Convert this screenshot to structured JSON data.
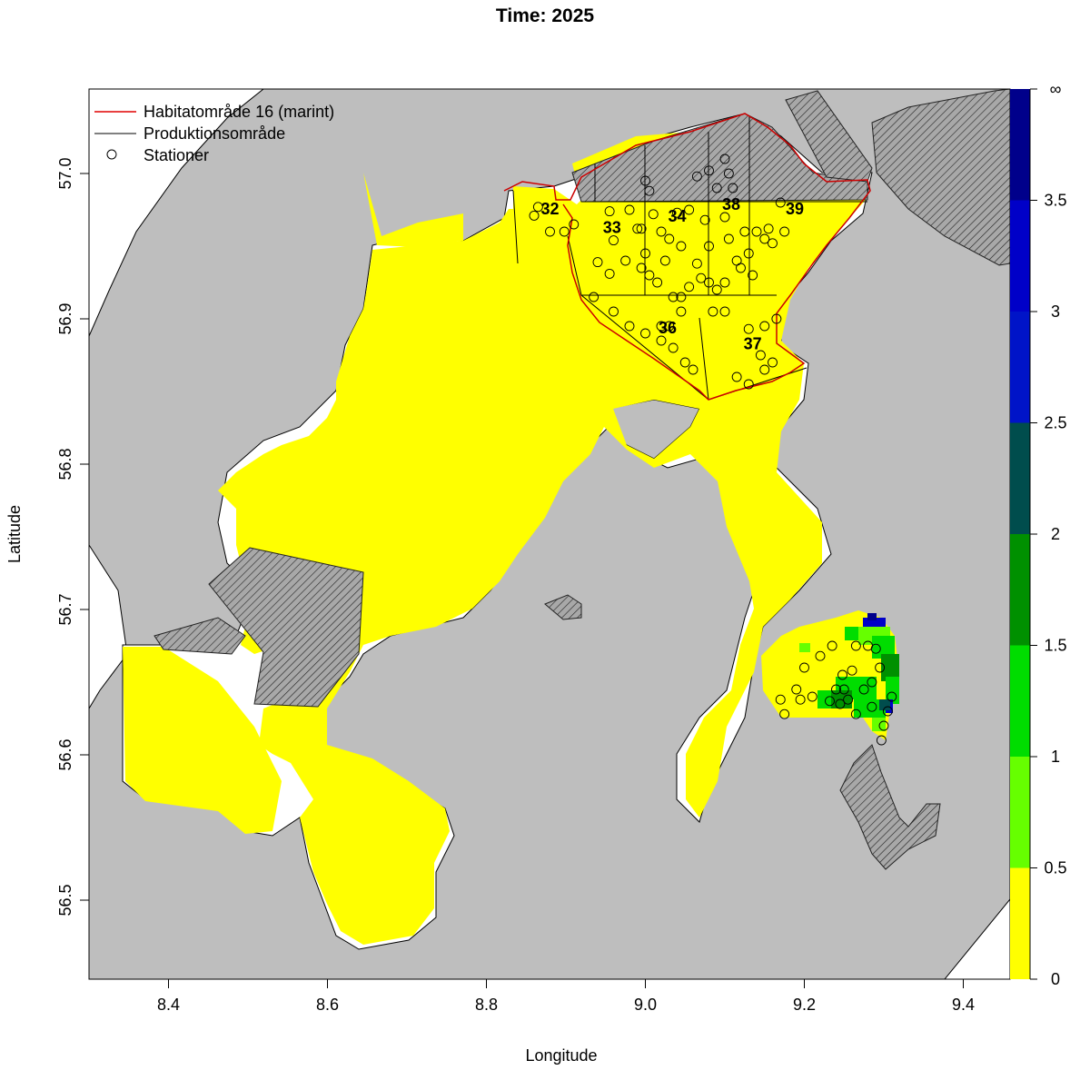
{
  "chart_data": {
    "type": "heatmap",
    "title": "Time: 2025",
    "xlabel": "Longitude",
    "ylabel": "Latitude",
    "xlim": [
      8.3,
      9.5
    ],
    "ylim": [
      56.45,
      57.06
    ],
    "x_ticks": [
      "8.4",
      "8.6",
      "8.8",
      "9.0",
      "9.2",
      "9.4"
    ],
    "y_ticks": [
      "56.5",
      "56.6",
      "56.7",
      "56.8",
      "56.9",
      "57.0"
    ],
    "legend": {
      "position": "top-left",
      "entries": [
        {
          "label": "Habitatområde 16 (marint)",
          "symbol": "line",
          "color": "#e00000"
        },
        {
          "label": "Produktionsområde",
          "symbol": "line",
          "color": "#000000"
        },
        {
          "label": "Stationer",
          "symbol": "circle",
          "color": "#000000"
        }
      ]
    },
    "colorbar": {
      "breaks": [
        0,
        0.5,
        1,
        1.5,
        2,
        2.5,
        3,
        3.5,
        "∞"
      ],
      "labels": [
        "0",
        "0.5",
        "1",
        "1.5",
        "2",
        "2.5",
        "3",
        "3.5",
        "∞"
      ],
      "colors": [
        "#ffff00",
        "#66ff00",
        "#00dd00",
        "#009000",
        "#004d4d",
        "#0014c8",
        "#0000c8",
        "#00008b"
      ]
    },
    "area_labels": [
      {
        "text": "32",
        "lon": 8.88,
        "lat": 56.972
      },
      {
        "text": "33",
        "lon": 8.958,
        "lat": 56.959
      },
      {
        "text": "34",
        "lon": 9.04,
        "lat": 56.967
      },
      {
        "text": "38",
        "lon": 9.108,
        "lat": 56.975
      },
      {
        "text": "39",
        "lon": 9.188,
        "lat": 56.972
      },
      {
        "text": "36",
        "lon": 9.028,
        "lat": 56.89
      },
      {
        "text": "37",
        "lon": 9.135,
        "lat": 56.879
      }
    ],
    "stations": [
      [
        8.86,
        56.971
      ],
      [
        8.865,
        56.977
      ],
      [
        8.88,
        56.96
      ],
      [
        8.898,
        56.96
      ],
      [
        8.91,
        56.965
      ],
      [
        8.955,
        56.974
      ],
      [
        8.98,
        56.975
      ],
      [
        8.99,
        56.962
      ],
      [
        8.96,
        56.954
      ],
      [
        8.94,
        56.939
      ],
      [
        8.955,
        56.931
      ],
      [
        8.975,
        56.94
      ],
      [
        8.995,
        56.935
      ],
      [
        8.995,
        56.962
      ],
      [
        9.0,
        56.995
      ],
      [
        9.005,
        56.988
      ],
      [
        9.01,
        56.972
      ],
      [
        9.02,
        56.96
      ],
      [
        9.03,
        56.955
      ],
      [
        9.04,
        56.973
      ],
      [
        9.055,
        56.975
      ],
      [
        9.065,
        56.998
      ],
      [
        9.08,
        57.002
      ],
      [
        9.1,
        57.01
      ],
      [
        9.105,
        57.0
      ],
      [
        9.09,
        56.99
      ],
      [
        9.11,
        56.99
      ],
      [
        9.1,
        56.97
      ],
      [
        9.075,
        56.968
      ],
      [
        9.08,
        56.95
      ],
      [
        9.065,
        56.938
      ],
      [
        9.055,
        56.922
      ],
      [
        9.045,
        56.95
      ],
      [
        9.025,
        56.94
      ],
      [
        9.005,
        56.93
      ],
      [
        9.0,
        56.945
      ],
      [
        9.015,
        56.925
      ],
      [
        9.035,
        56.915
      ],
      [
        9.08,
        56.925
      ],
      [
        9.085,
        56.905
      ],
      [
        9.09,
        56.92
      ],
      [
        9.105,
        56.955
      ],
      [
        9.115,
        56.94
      ],
      [
        9.125,
        56.96
      ],
      [
        9.13,
        56.945
      ],
      [
        9.14,
        56.96
      ],
      [
        9.15,
        56.955
      ],
      [
        9.155,
        56.962
      ],
      [
        9.17,
        56.98
      ],
      [
        9.175,
        56.96
      ],
      [
        9.16,
        56.952
      ],
      [
        9.135,
        56.93
      ],
      [
        9.12,
        56.935
      ],
      [
        9.1,
        56.925
      ],
      [
        9.07,
        56.928
      ],
      [
        9.045,
        56.915
      ],
      [
        8.935,
        56.915
      ],
      [
        8.96,
        56.905
      ],
      [
        8.98,
        56.895
      ],
      [
        9.0,
        56.89
      ],
      [
        9.02,
        56.885
      ],
      [
        9.035,
        56.88
      ],
      [
        9.05,
        56.87
      ],
      [
        9.06,
        56.865
      ],
      [
        9.03,
        56.895
      ],
      [
        9.02,
        56.895
      ],
      [
        9.045,
        56.905
      ],
      [
        9.1,
        56.905
      ],
      [
        9.13,
        56.893
      ],
      [
        9.145,
        56.875
      ],
      [
        9.15,
        56.865
      ],
      [
        9.16,
        56.87
      ],
      [
        9.165,
        56.9
      ],
      [
        9.15,
        56.895
      ],
      [
        9.13,
        56.855
      ],
      [
        9.115,
        56.86
      ],
      [
        9.2,
        56.66
      ],
      [
        9.19,
        56.645
      ],
      [
        9.21,
        56.64
      ],
      [
        9.22,
        56.668
      ],
      [
        9.235,
        56.675
      ],
      [
        9.248,
        56.655
      ],
      [
        9.26,
        56.658
      ],
      [
        9.265,
        56.675
      ],
      [
        9.28,
        56.675
      ],
      [
        9.29,
        56.673
      ],
      [
        9.295,
        56.66
      ],
      [
        9.285,
        56.65
      ],
      [
        9.275,
        56.645
      ],
      [
        9.255,
        56.638
      ],
      [
        9.245,
        56.635
      ],
      [
        9.25,
        56.645
      ],
      [
        9.265,
        56.628
      ],
      [
        9.285,
        56.633
      ],
      [
        9.3,
        56.62
      ],
      [
        9.305,
        56.63
      ],
      [
        9.31,
        56.64
      ],
      [
        9.17,
        56.638
      ],
      [
        9.175,
        56.628
      ],
      [
        9.195,
        56.638
      ],
      [
        9.232,
        56.637
      ],
      [
        9.24,
        56.645
      ],
      [
        9.297,
        56.61
      ]
    ]
  }
}
